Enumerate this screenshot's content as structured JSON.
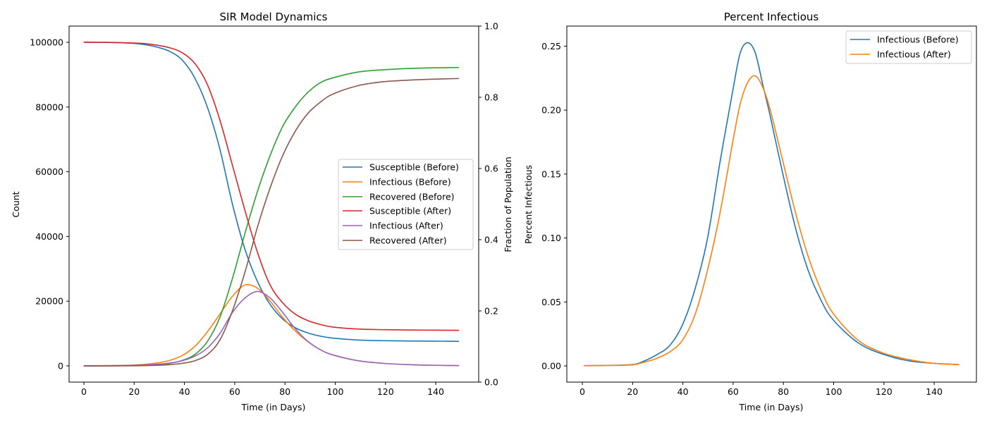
{
  "chart_data": [
    {
      "type": "line",
      "title": "SIR Model Dynamics",
      "xlabel": "Time (in Days)",
      "ylabel": "Count",
      "y2label": "Fraction of Population",
      "xlim": [
        -5,
        158
      ],
      "ylim": [
        -5000,
        105000
      ],
      "y2lim": [
        0.0,
        1.0
      ],
      "xticks": [
        "0",
        "20",
        "40",
        "60",
        "80",
        "100",
        "120",
        "140"
      ],
      "yticks": [
        "0",
        "20000",
        "40000",
        "60000",
        "80000",
        "100000"
      ],
      "y2ticks": [
        "0.0",
        "0.2",
        "0.4",
        "0.6",
        "0.8",
        "1.0"
      ],
      "legend_position": "center-right",
      "grid": false,
      "x": [
        1,
        10,
        20,
        25,
        30,
        35,
        40,
        45,
        50,
        55,
        60,
        65,
        70,
        75,
        80,
        85,
        90,
        95,
        100,
        110,
        120,
        130,
        140,
        150
      ],
      "series": [
        {
          "name": "Susceptible (Before)",
          "color": "#1f77b4",
          "values": [
            100000,
            99950,
            99700,
            99300,
            98500,
            97200,
            94500,
            89000,
            80000,
            67000,
            50000,
            36000,
            26000,
            19000,
            14500,
            11800,
            10200,
            9200,
            8600,
            8000,
            7800,
            7700,
            7650,
            7600
          ]
        },
        {
          "name": "Infectious (Before)",
          "color": "#ff7f0e",
          "values": [
            20,
            100,
            250,
            500,
            900,
            1700,
            3200,
            6000,
            10500,
            16000,
            21500,
            25000,
            24000,
            20000,
            15000,
            10800,
            7500,
            5000,
            3400,
            1600,
            800,
            400,
            200,
            100
          ]
        },
        {
          "name": "Recovered (Before)",
          "color": "#2ca02c",
          "values": [
            0,
            20,
            100,
            200,
            400,
            800,
            1700,
            3500,
            7500,
            15000,
            27000,
            41000,
            54000,
            65000,
            74000,
            80000,
            84500,
            87500,
            89000,
            90800,
            91500,
            91900,
            92100,
            92200
          ]
        },
        {
          "name": "Susceptible (After)",
          "color": "#d62728",
          "values": [
            100000,
            99970,
            99800,
            99600,
            99100,
            98300,
            96800,
            93500,
            87000,
            76000,
            62000,
            48000,
            35000,
            25000,
            19500,
            16000,
            14000,
            12800,
            12000,
            11400,
            11200,
            11100,
            11050,
            11000
          ]
        },
        {
          "name": "Infectious (After)",
          "color": "#9467bd",
          "values": [
            20,
            60,
            150,
            300,
            500,
            900,
            1600,
            3000,
            5500,
            10000,
            16500,
            21000,
            23000,
            21000,
            16500,
            11500,
            7600,
            5000,
            3400,
            1600,
            800,
            400,
            200,
            100
          ]
        },
        {
          "name": "Recovered (After)",
          "color": "#8c564b",
          "values": [
            0,
            10,
            50,
            100,
            200,
            400,
            800,
            1600,
            3500,
            8000,
            17000,
            29000,
            43000,
            55000,
            65000,
            72500,
            78000,
            81500,
            84000,
            86600,
            87800,
            88300,
            88600,
            88800
          ]
        }
      ]
    },
    {
      "type": "line",
      "title": "Percent Infectious",
      "xlabel": "Time (in Days)",
      "ylabel": "Percent Infectious",
      "xlim": [
        -6,
        157
      ],
      "ylim": [
        -0.0127,
        0.266
      ],
      "xticks": [
        "0",
        "20",
        "40",
        "60",
        "80",
        "100",
        "120",
        "140"
      ],
      "yticks": [
        "0.00",
        "0.05",
        "0.10",
        "0.15",
        "0.20",
        "0.25"
      ],
      "legend_position": "top-right",
      "grid": false,
      "x": [
        1,
        10,
        20,
        25,
        30,
        35,
        40,
        45,
        50,
        55,
        60,
        63,
        66,
        69,
        72,
        75,
        80,
        85,
        90,
        95,
        100,
        110,
        120,
        130,
        140,
        150
      ],
      "series": [
        {
          "name": "Infectious (Before)",
          "color": "#1f77b4",
          "values": [
            0.0002,
            0.0004,
            0.001,
            0.004,
            0.009,
            0.016,
            0.032,
            0.06,
            0.1,
            0.16,
            0.215,
            0.245,
            0.253,
            0.245,
            0.22,
            0.195,
            0.15,
            0.108,
            0.075,
            0.052,
            0.036,
            0.018,
            0.009,
            0.004,
            0.002,
            0.001
          ]
        },
        {
          "name": "Infectious (After)",
          "color": "#ff7f0e",
          "values": [
            0.0001,
            0.0003,
            0.0008,
            0.003,
            0.006,
            0.011,
            0.02,
            0.04,
            0.075,
            0.12,
            0.175,
            0.205,
            0.222,
            0.227,
            0.218,
            0.2,
            0.16,
            0.12,
            0.086,
            0.06,
            0.041,
            0.02,
            0.01,
            0.005,
            0.002,
            0.001
          ]
        }
      ]
    }
  ]
}
